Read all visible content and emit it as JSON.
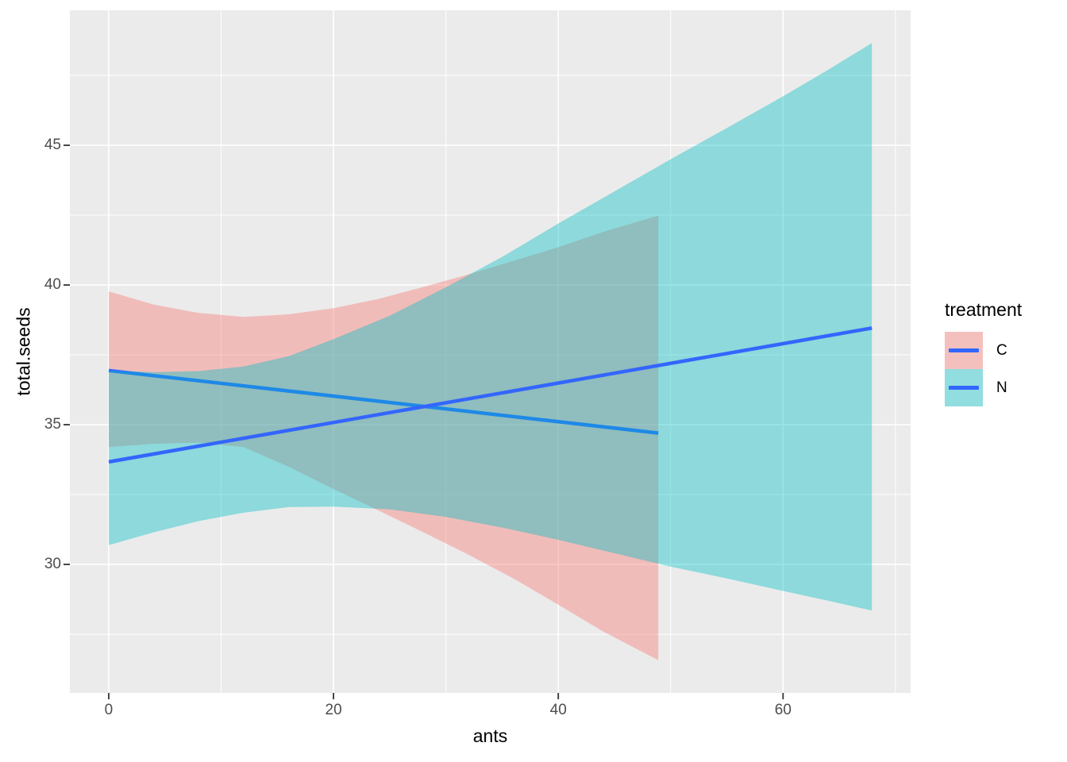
{
  "figure": {
    "background": "#FFFFFF",
    "panel_background": "#EBEBEB",
    "gridline_color": "#FFFFFF",
    "tick_mark_color": "#333333",
    "tick_label_color": "#4D4D4D"
  },
  "axes": {
    "x": {
      "title": "ants",
      "major_ticks": [
        0,
        20,
        40,
        60
      ],
      "minor_ticks": [
        10,
        30,
        50,
        70
      ],
      "lim": [
        -3.46,
        71.35
      ]
    },
    "y": {
      "title": "total.seeds",
      "major_ticks": [
        30,
        35,
        40,
        45
      ],
      "minor_ticks": [
        27.5,
        32.5,
        37.5,
        42.5,
        47.5
      ],
      "lim": [
        25.4,
        49.83
      ]
    }
  },
  "legend": {
    "title": "treatment",
    "key_background": "#F2F2F2",
    "line_color": "#3366FF",
    "items": [
      {
        "label": "C",
        "fill": "rgba(248,118,109,0.4)"
      },
      {
        "label": "N",
        "fill": "rgba(0,191,196,0.4)"
      }
    ]
  },
  "chart_data": {
    "type": "line",
    "title": "",
    "xlabel": "ants",
    "ylabel": "total.seeds",
    "xlim": [
      -3.46,
      71.35
    ],
    "ylim": [
      25.4,
      49.83
    ],
    "grid": true,
    "legend_position": "right",
    "series": [
      {
        "name": "C",
        "kind": "linear-fit-with-confidence-ribbon",
        "line_color": "#3366FF",
        "ribbon_fill": "rgba(248,118,109,0.4)",
        "line": {
          "x": [
            0,
            48.9
          ],
          "y": [
            36.94,
            34.7
          ]
        },
        "ribbon": {
          "x": [
            0,
            4,
            8,
            12,
            16,
            20,
            24,
            28,
            32,
            36,
            40,
            44,
            48.9
          ],
          "upper": [
            39.77,
            39.3,
            39.0,
            38.86,
            38.95,
            39.17,
            39.5,
            39.93,
            40.38,
            40.86,
            41.35,
            41.9,
            42.48
          ],
          "lower": [
            34.2,
            34.32,
            34.36,
            34.2,
            33.5,
            32.7,
            31.93,
            31.15,
            30.35,
            29.5,
            28.56,
            27.6,
            26.57
          ]
        }
      },
      {
        "name": "N",
        "kind": "linear-fit-with-confidence-ribbon",
        "line_color": "#3366FF",
        "ribbon_fill": "rgba(0,191,196,0.4)",
        "line": {
          "x": [
            0,
            67.9
          ],
          "y": [
            33.67,
            38.46
          ]
        },
        "ribbon": {
          "x": [
            0,
            4,
            8,
            12,
            16,
            20,
            25,
            30,
            35,
            40,
            45,
            50,
            55,
            60,
            64,
            67.9
          ],
          "upper": [
            36.94,
            36.88,
            36.92,
            37.08,
            37.45,
            38.06,
            38.9,
            39.92,
            41.0,
            42.2,
            43.35,
            44.5,
            45.62,
            46.75,
            47.7,
            48.66
          ],
          "lower": [
            30.69,
            31.15,
            31.55,
            31.85,
            32.05,
            32.07,
            31.97,
            31.7,
            31.32,
            30.88,
            30.4,
            29.92,
            29.5,
            29.05,
            28.7,
            28.35
          ]
        }
      }
    ]
  }
}
